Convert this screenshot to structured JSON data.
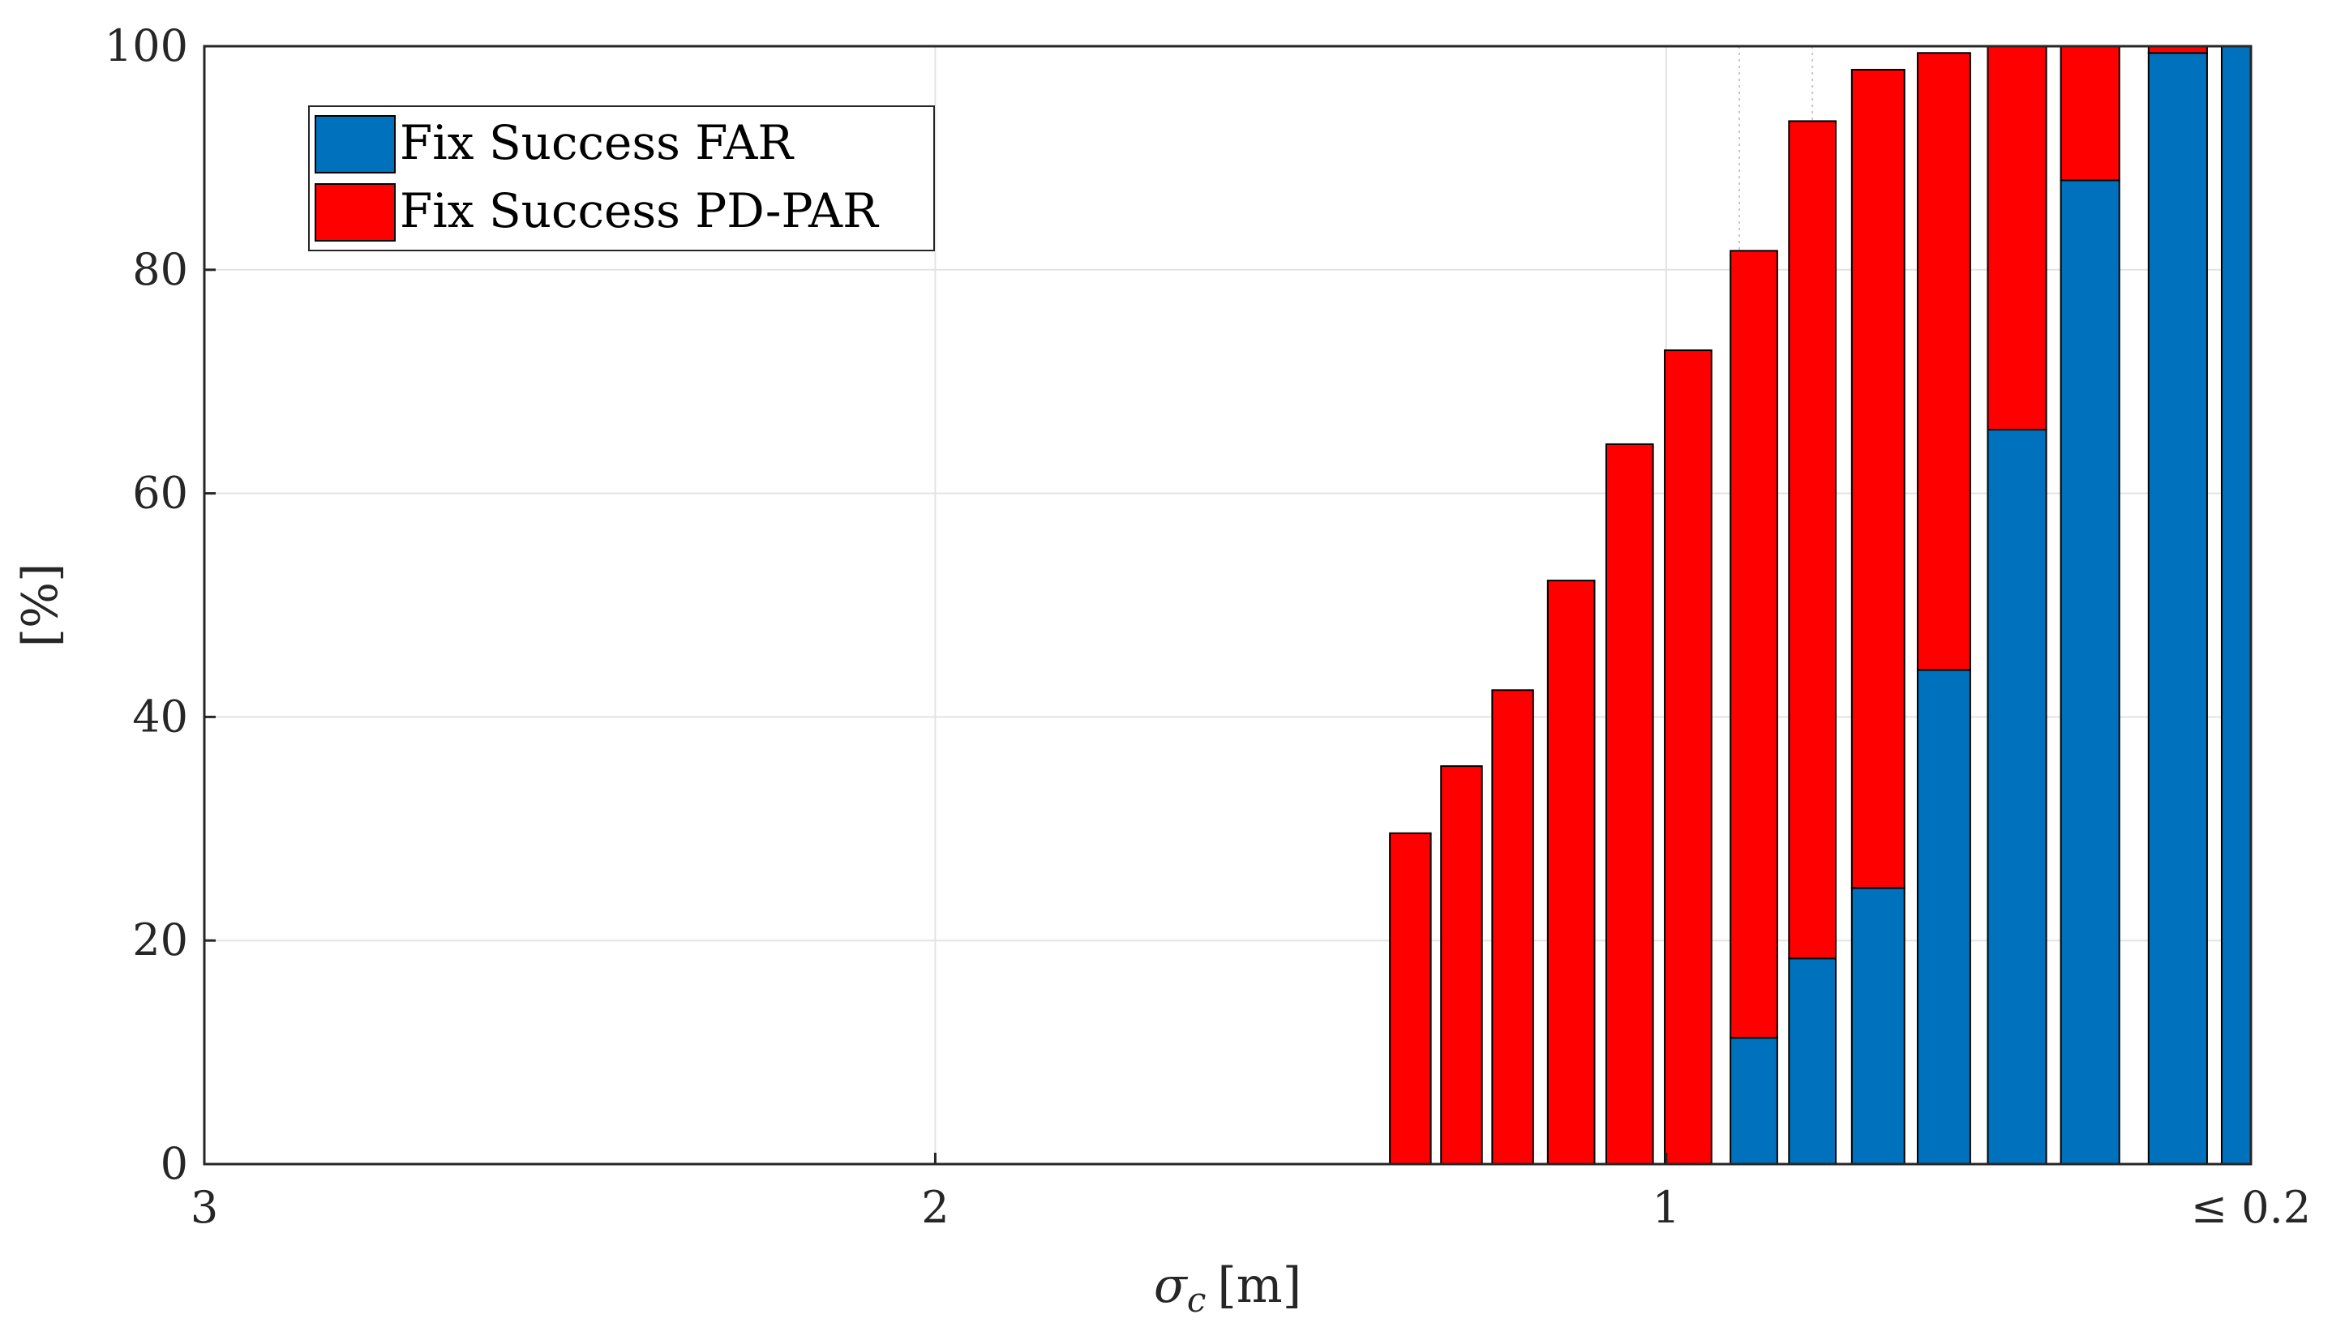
{
  "chart_data": {
    "type": "bar",
    "stacked": true,
    "title": "",
    "xlabel": "σ",
    "xlabel_subscript": "c",
    "xlabel_unit": "[m]",
    "ylabel": "[%]",
    "ylim": [
      0,
      100
    ],
    "yticks": [
      "0",
      "20",
      "40",
      "60",
      "80",
      "100"
    ],
    "xlim": [
      3,
      0.2
    ],
    "xticks": [
      {
        "value": 3,
        "label": "3"
      },
      {
        "value": 2,
        "label": "2"
      },
      {
        "value": 1,
        "label": "1"
      },
      {
        "value": 0.2,
        "label": "≤ 0.2"
      }
    ],
    "grid": true,
    "legend_position": "top-left",
    "categories": [
      "1.35",
      "1.28",
      "1.21",
      "1.13",
      "1.05",
      "0.97",
      "0.88",
      "0.8",
      "0.71",
      "0.62",
      "0.52",
      "0.42",
      "0.3",
      "0.2"
    ],
    "series": [
      {
        "name": "Fix Success FAR",
        "color": "#0072BD",
        "values": [
          0,
          0,
          0,
          0,
          0,
          0,
          11.3,
          18.4,
          24.7,
          44.2,
          65.7,
          88.0,
          99.4,
          100
        ]
      },
      {
        "name": "Fix Success PD-PAR",
        "color": "#FF0000",
        "values": [
          29.6,
          35.6,
          42.4,
          52.2,
          64.4,
          72.8,
          70.4,
          74.9,
          73.2,
          55.2,
          34.3,
          12.0,
          0.6,
          0
        ]
      }
    ]
  }
}
